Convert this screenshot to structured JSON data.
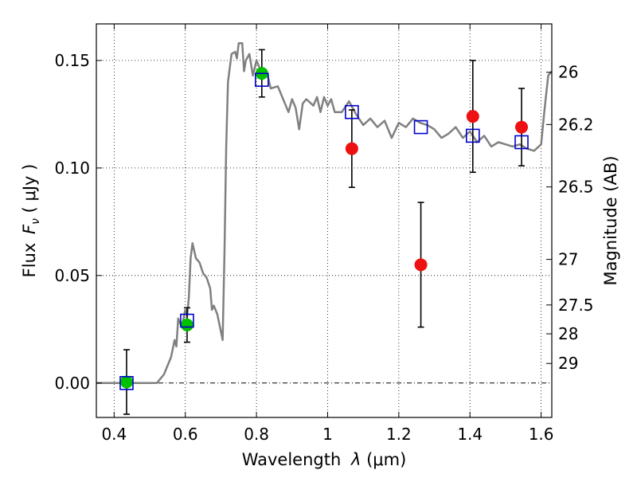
{
  "chart_data": {
    "type": "scatter",
    "xlabel_text": "Wavelength",
    "xlabel_symbol": "λ",
    "xlabel_unit": "(μm)",
    "ylabel_text": "Flux",
    "ylabel_symbol": "F",
    "ylabel_subscript": "ν",
    "ylabel_unit": "( μJy )",
    "y2label": "Magnitude (AB)",
    "xlim": [
      0.35,
      1.63
    ],
    "ylim": [
      -0.016,
      0.167
    ],
    "grid": true,
    "x_ticks": [
      0.4,
      0.6,
      0.8,
      1.0,
      1.2,
      1.4,
      1.6
    ],
    "x_tick_labels": [
      "0.4",
      "0.6",
      "0.8",
      "1",
      "1.2",
      "1.4",
      "1.6"
    ],
    "y_ticks": [
      0.0,
      0.05,
      0.1,
      0.15
    ],
    "y_tick_labels": [
      "0.00",
      "0.05",
      "0.10",
      "0.15"
    ],
    "right_ticks": [
      {
        "label": "26",
        "flux": 0.1445
      },
      {
        "label": "26.2",
        "flux": 0.1202
      },
      {
        "label": "26.5",
        "flux": 0.0912
      },
      {
        "label": "27",
        "flux": 0.0575
      },
      {
        "label": "27.5",
        "flux": 0.0363
      },
      {
        "label": "28",
        "flux": 0.0229
      },
      {
        "label": "29",
        "flux": 0.0091
      }
    ],
    "series": [
      {
        "name": "model spectrum",
        "kind": "line",
        "color": "#808080",
        "points": [
          [
            0.35,
            0.0
          ],
          [
            0.52,
            0.0
          ],
          [
            0.54,
            0.004
          ],
          [
            0.56,
            0.012
          ],
          [
            0.57,
            0.02
          ],
          [
            0.575,
            0.017
          ],
          [
            0.58,
            0.03
          ],
          [
            0.59,
            0.026
          ],
          [
            0.6,
            0.034
          ],
          [
            0.605,
            0.031
          ],
          [
            0.61,
            0.04
          ],
          [
            0.615,
            0.058
          ],
          [
            0.62,
            0.065
          ],
          [
            0.63,
            0.058
          ],
          [
            0.64,
            0.056
          ],
          [
            0.65,
            0.051
          ],
          [
            0.66,
            0.049
          ],
          [
            0.67,
            0.044
          ],
          [
            0.675,
            0.034
          ],
          [
            0.68,
            0.036
          ],
          [
            0.69,
            0.032
          ],
          [
            0.7,
            0.024
          ],
          [
            0.705,
            0.02
          ],
          [
            0.71,
            0.06
          ],
          [
            0.715,
            0.11
          ],
          [
            0.72,
            0.14
          ],
          [
            0.73,
            0.153
          ],
          [
            0.74,
            0.154
          ],
          [
            0.745,
            0.151
          ],
          [
            0.75,
            0.158
          ],
          [
            0.76,
            0.158
          ],
          [
            0.765,
            0.145
          ],
          [
            0.77,
            0.15
          ],
          [
            0.78,
            0.153
          ],
          [
            0.79,
            0.143
          ],
          [
            0.8,
            0.15
          ],
          [
            0.81,
            0.146
          ],
          [
            0.82,
            0.143
          ],
          [
            0.83,
            0.144
          ],
          [
            0.84,
            0.137
          ],
          [
            0.86,
            0.138
          ],
          [
            0.88,
            0.13
          ],
          [
            0.89,
            0.126
          ],
          [
            0.9,
            0.132
          ],
          [
            0.91,
            0.128
          ],
          [
            0.92,
            0.118
          ],
          [
            0.93,
            0.13
          ],
          [
            0.94,
            0.132
          ],
          [
            0.96,
            0.129
          ],
          [
            0.97,
            0.133
          ],
          [
            0.98,
            0.126
          ],
          [
            0.99,
            0.133
          ],
          [
            1.0,
            0.129
          ],
          [
            1.01,
            0.132
          ],
          [
            1.02,
            0.126
          ],
          [
            1.04,
            0.126
          ],
          [
            1.06,
            0.131
          ],
          [
            1.08,
            0.125
          ],
          [
            1.1,
            0.12
          ],
          [
            1.12,
            0.123
          ],
          [
            1.14,
            0.119
          ],
          [
            1.16,
            0.122
          ],
          [
            1.18,
            0.114
          ],
          [
            1.2,
            0.121
          ],
          [
            1.22,
            0.119
          ],
          [
            1.24,
            0.123
          ],
          [
            1.26,
            0.121
          ],
          [
            1.28,
            0.12
          ],
          [
            1.3,
            0.118
          ],
          [
            1.32,
            0.114
          ],
          [
            1.34,
            0.116
          ],
          [
            1.36,
            0.119
          ],
          [
            1.38,
            0.114
          ],
          [
            1.4,
            0.117
          ],
          [
            1.42,
            0.112
          ],
          [
            1.44,
            0.115
          ],
          [
            1.46,
            0.11
          ],
          [
            1.48,
            0.112
          ],
          [
            1.5,
            0.111
          ],
          [
            1.52,
            0.11
          ],
          [
            1.54,
            0.111
          ],
          [
            1.56,
            0.109
          ],
          [
            1.58,
            0.108
          ],
          [
            1.6,
            0.111
          ],
          [
            1.61,
            0.128
          ],
          [
            1.62,
            0.143
          ],
          [
            1.63,
            0.145
          ]
        ]
      },
      {
        "name": "green detections",
        "kind": "points",
        "marker": "circle",
        "color": "#00c000",
        "points": [
          {
            "x": 0.435,
            "y": 0.0005,
            "err": 0.015
          },
          {
            "x": 0.605,
            "y": 0.027,
            "err": 0.008
          },
          {
            "x": 0.815,
            "y": 0.144,
            "err": 0.011
          }
        ]
      },
      {
        "name": "red detections",
        "kind": "points",
        "marker": "circle",
        "color": "#ee1111",
        "points": [
          {
            "x": 1.068,
            "y": 0.109,
            "err": 0.018
          },
          {
            "x": 1.262,
            "y": 0.055,
            "err": 0.029
          },
          {
            "x": 1.408,
            "y": 0.124,
            "err": 0.026
          },
          {
            "x": 1.545,
            "y": 0.119,
            "err": 0.018
          }
        ]
      },
      {
        "name": "model photometry",
        "kind": "points",
        "marker": "square",
        "color": "#0000cc",
        "points": [
          {
            "x": 0.435,
            "y": 0.0
          },
          {
            "x": 0.605,
            "y": 0.029
          },
          {
            "x": 0.815,
            "y": 0.141
          },
          {
            "x": 1.068,
            "y": 0.126
          },
          {
            "x": 1.262,
            "y": 0.119
          },
          {
            "x": 1.408,
            "y": 0.115
          },
          {
            "x": 1.545,
            "y": 0.112
          }
        ]
      }
    ]
  }
}
